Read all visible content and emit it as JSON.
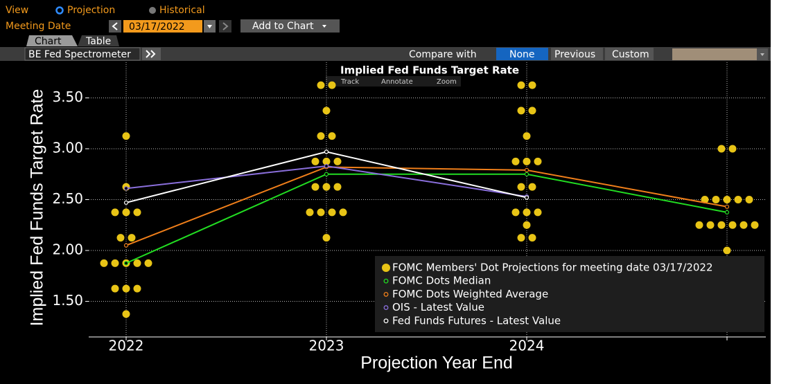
{
  "ui": {
    "view_label": "View",
    "view_options": [
      "Projection",
      "Historical"
    ],
    "meeting_date_label": "Meeting Date",
    "meeting_date": "03/17/2022",
    "add_to_chart": "Add to Chart",
    "tabs": [
      "Chart",
      "Table"
    ],
    "toolbar_title": "BE Fed Spectrometer",
    "compare_label": "Compare with",
    "compare_options": [
      "None",
      "Previous",
      "Custom"
    ],
    "chart_tools": [
      "Track",
      "Annotate",
      "Zoom"
    ]
  },
  "chart_data": {
    "type": "line",
    "title": "Implied Fed Funds Target Rate",
    "x_label": "Projection Year End",
    "y_label": "Implied Fed Funds Target Rate",
    "categories": [
      "2022",
      "2023",
      "2024",
      null
    ],
    "ylim": [
      1.15,
      3.85
    ],
    "yticks": [
      {
        "value": 1.5,
        "label": "1.50"
      },
      {
        "value": 2.0,
        "label": "2.00"
      },
      {
        "value": 2.5,
        "label": "2.50"
      },
      {
        "value": 3.0,
        "label": "3.00"
      },
      {
        "value": 3.5,
        "label": "3.50"
      }
    ],
    "grid": true,
    "legend": "lower right",
    "series": [
      {
        "name": "FOMC Members' Dot Projections for meeting date 03/17/2022",
        "color": "#e8c416",
        "levels": [
          [
            3.125,
            2.625,
            2.375,
            2.125,
            1.875,
            1.625,
            1.375
          ],
          [
            3.625,
            3.375,
            3.125,
            2.875,
            2.625,
            2.375,
            2.125
          ],
          [
            3.625,
            3.375,
            3.125,
            2.875,
            2.625,
            2.375,
            2.25,
            2.125
          ],
          [
            3.0,
            2.5,
            2.25,
            2.0
          ]
        ],
        "counts": [
          [
            1,
            1,
            3,
            2,
            5,
            3,
            1
          ],
          [
            2,
            1,
            2,
            3,
            3,
            4,
            1
          ],
          [
            2,
            2,
            1,
            3,
            2,
            3,
            1,
            2
          ],
          [
            2,
            5,
            6,
            1
          ]
        ]
      },
      {
        "name": "FOMC Dots Median",
        "color": "#22dd22",
        "values": [
          1.875,
          2.75,
          2.75,
          2.375
        ]
      },
      {
        "name": "FOMC Dots Weighted Average",
        "color": "#f07f1a",
        "values": [
          2.05,
          2.82,
          2.79,
          2.43
        ]
      },
      {
        "name": "OIS - Latest Value",
        "color": "#8a6fdc",
        "values": [
          2.61,
          2.83,
          2.53,
          null
        ]
      },
      {
        "name": "Fed Funds Futures - Latest Value",
        "color": "#ffffff",
        "values": [
          2.47,
          2.97,
          2.52,
          null
        ]
      }
    ]
  }
}
